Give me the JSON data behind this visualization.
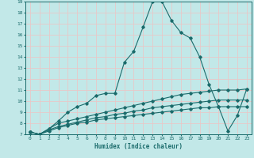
{
  "title": "",
  "xlabel": "Humidex (Indice chaleur)",
  "bg_color": "#c2e8e8",
  "line_color": "#1a6b6b",
  "grid_color": "#e8c8c8",
  "ylim": [
    7,
    19
  ],
  "xlim": [
    -0.5,
    23.5
  ],
  "yticks": [
    7,
    8,
    9,
    10,
    11,
    12,
    13,
    14,
    15,
    16,
    17,
    18,
    19
  ],
  "xticks": [
    0,
    1,
    2,
    3,
    4,
    5,
    6,
    7,
    8,
    9,
    10,
    11,
    12,
    13,
    14,
    15,
    16,
    17,
    18,
    19,
    20,
    21,
    22,
    23
  ],
  "line1_x": [
    0,
    1,
    2,
    3,
    4,
    5,
    6,
    7,
    8,
    9,
    10,
    11,
    12,
    13,
    14,
    15,
    16,
    17,
    18,
    19,
    20,
    21,
    22,
    23
  ],
  "line1_y": [
    7.2,
    7.0,
    7.5,
    8.2,
    9.0,
    9.5,
    9.8,
    10.5,
    10.7,
    10.7,
    13.5,
    14.5,
    16.7,
    19.0,
    19.0,
    17.3,
    16.2,
    15.7,
    14.0,
    11.5,
    9.5,
    7.3,
    8.7,
    11.1
  ],
  "line2_x": [
    0,
    1,
    2,
    3,
    4,
    5,
    6,
    7,
    8,
    9,
    10,
    11,
    12,
    13,
    14,
    15,
    16,
    17,
    18,
    19,
    20,
    21,
    22,
    23
  ],
  "line2_y": [
    7.2,
    7.0,
    7.5,
    8.0,
    8.2,
    8.4,
    8.6,
    8.8,
    9.0,
    9.2,
    9.4,
    9.6,
    9.8,
    10.0,
    10.2,
    10.4,
    10.6,
    10.7,
    10.8,
    10.9,
    11.0,
    11.0,
    11.0,
    11.1
  ],
  "line3_x": [
    0,
    1,
    2,
    3,
    4,
    5,
    6,
    7,
    8,
    9,
    10,
    11,
    12,
    13,
    14,
    15,
    16,
    17,
    18,
    19,
    20,
    21,
    22,
    23
  ],
  "line3_y": [
    7.2,
    7.0,
    7.4,
    7.7,
    7.9,
    8.1,
    8.3,
    8.5,
    8.6,
    8.8,
    8.9,
    9.1,
    9.2,
    9.4,
    9.5,
    9.6,
    9.7,
    9.8,
    9.9,
    10.0,
    10.1,
    10.1,
    10.1,
    10.1
  ],
  "line4_x": [
    0,
    1,
    2,
    3,
    4,
    5,
    6,
    7,
    8,
    9,
    10,
    11,
    12,
    13,
    14,
    15,
    16,
    17,
    18,
    19,
    20,
    21,
    22,
    23
  ],
  "line4_y": [
    7.2,
    7.0,
    7.3,
    7.6,
    7.8,
    8.0,
    8.1,
    8.3,
    8.4,
    8.5,
    8.6,
    8.7,
    8.8,
    8.9,
    9.0,
    9.1,
    9.2,
    9.3,
    9.4,
    9.4,
    9.5,
    9.5,
    9.5,
    9.5
  ]
}
